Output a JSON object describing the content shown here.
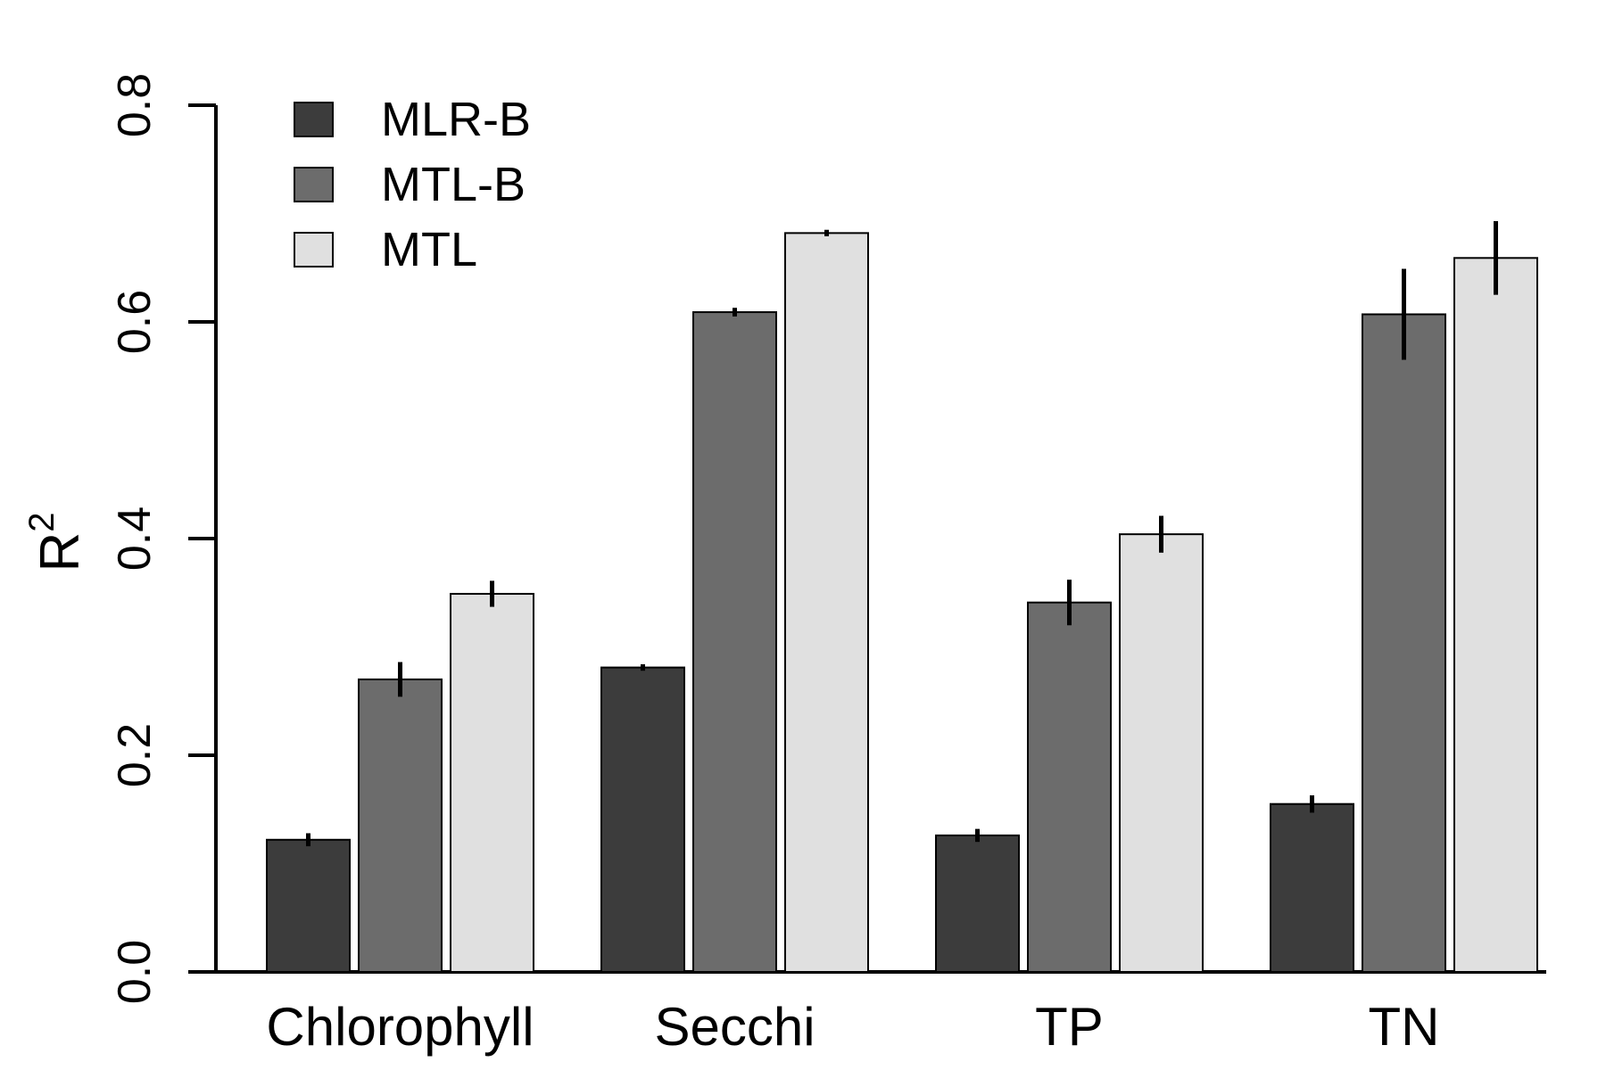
{
  "chart_data": {
    "type": "bar",
    "categories": [
      "Chlorophyll",
      "Secchi",
      "TP",
      "TN"
    ],
    "series": [
      {
        "name": "MLR-B",
        "color": "#3c3c3c",
        "values": [
          0.122,
          0.281,
          0.126,
          0.155
        ],
        "errors": [
          0.006,
          0.003,
          0.006,
          0.008
        ]
      },
      {
        "name": "MTL-B",
        "color": "#6c6c6c",
        "values": [
          0.27,
          0.609,
          0.341,
          0.607
        ],
        "errors": [
          0.016,
          0.004,
          0.021,
          0.042
        ]
      },
      {
        "name": "MTL",
        "color": "#e0e0e0",
        "values": [
          0.349,
          0.682,
          0.404,
          0.659
        ],
        "errors": [
          0.012,
          0.003,
          0.017,
          0.034
        ]
      }
    ],
    "ylabel": "R",
    "ylabel_superscript": "2",
    "ylim": [
      0,
      0.8
    ],
    "yticks": [
      "0.0",
      "0.2",
      "0.4",
      "0.6",
      "0.8"
    ],
    "legend_position": "top-left",
    "grid": false
  }
}
